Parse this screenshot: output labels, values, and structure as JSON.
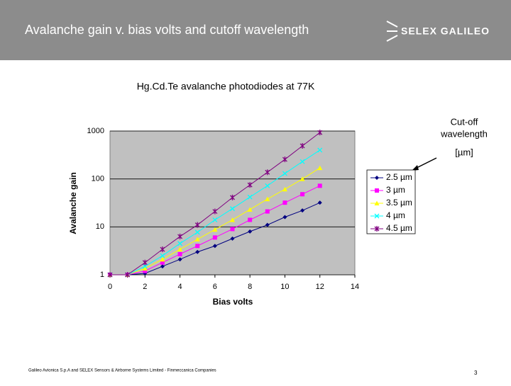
{
  "header": {
    "title": "Avalanche gain v. bias volts and cutoff wavelength",
    "logo": "SELEX GALILEO"
  },
  "footer": {
    "text": "Galileo Avionica S.p.A and SELEX Sensors & Airborne Systems Limited - Finmeccanica Companies",
    "page": "3"
  },
  "chart_data": {
    "type": "line",
    "title": "Hg.Cd.Te avalanche photodiodes at 77K",
    "annotations": [
      "Cut-off",
      "wavelength",
      "[µm]"
    ],
    "x_label": "Bias volts",
    "y_label": "Avalanche gain",
    "x": [
      0,
      1,
      2,
      3,
      4,
      5,
      6,
      7,
      8,
      9,
      10,
      11,
      12
    ],
    "xlim": [
      0,
      14
    ],
    "xticks": [
      0,
      2,
      4,
      6,
      8,
      10,
      12,
      14
    ],
    "ylim": [
      1,
      1000
    ],
    "yticks": [
      1,
      10,
      100,
      1000
    ],
    "y_scale": "log",
    "grid": true,
    "legend": "right",
    "series": [
      {
        "name": "2.5 µm",
        "color": "#000080",
        "marker": "diamond",
        "values": [
          1,
          1,
          1.07,
          1.5,
          2.1,
          3,
          4,
          5.7,
          8,
          11,
          16,
          22,
          32
        ]
      },
      {
        "name": "3 µm",
        "color": "#ff00ff",
        "marker": "square",
        "values": [
          1,
          1,
          1.2,
          1.8,
          2.7,
          4,
          6,
          9,
          14,
          21,
          32,
          48,
          72
        ]
      },
      {
        "name": "3.5 µm",
        "color": "#ffff00",
        "marker": "triangle",
        "values": [
          1,
          1,
          1.36,
          2.1,
          3.4,
          5.5,
          8.8,
          14,
          23,
          38,
          61,
          100,
          170
        ]
      },
      {
        "name": "4 µm",
        "color": "#00ffff",
        "marker": "x",
        "values": [
          1,
          1,
          1.5,
          2.5,
          4.5,
          7.7,
          14,
          24,
          42,
          72,
          130,
          230,
          400
        ]
      },
      {
        "name": "4.5 µm",
        "color": "#800080",
        "marker": "star",
        "values": [
          1,
          1,
          1.8,
          3.4,
          6.3,
          11,
          21,
          41,
          75,
          138,
          256,
          490,
          930
        ]
      }
    ]
  }
}
